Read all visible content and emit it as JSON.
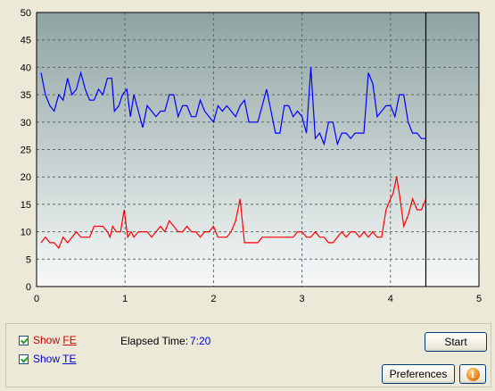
{
  "chart_data": {
    "type": "line",
    "title": "",
    "xlabel": "",
    "ylabel": "",
    "xlim": [
      0,
      5
    ],
    "ylim": [
      0,
      50
    ],
    "x_ticks": [
      "0",
      "1",
      "2",
      "3",
      "4",
      "5"
    ],
    "y_ticks": [
      "0",
      "5",
      "10",
      "15",
      "20",
      "25",
      "30",
      "35",
      "40",
      "45",
      "50"
    ],
    "grid": true,
    "cursor_x": 4.4,
    "series": [
      {
        "name": "TE",
        "color": "#0000ff",
        "points": [
          [
            0.05,
            39
          ],
          [
            0.1,
            35
          ],
          [
            0.15,
            33
          ],
          [
            0.2,
            32
          ],
          [
            0.25,
            35
          ],
          [
            0.3,
            34
          ],
          [
            0.35,
            38
          ],
          [
            0.4,
            35
          ],
          [
            0.45,
            36
          ],
          [
            0.5,
            39
          ],
          [
            0.55,
            36
          ],
          [
            0.6,
            34
          ],
          [
            0.65,
            34
          ],
          [
            0.7,
            36
          ],
          [
            0.75,
            35
          ],
          [
            0.8,
            38
          ],
          [
            0.85,
            38
          ],
          [
            0.88,
            32
          ],
          [
            0.93,
            33
          ],
          [
            0.97,
            35
          ],
          [
            1.02,
            36
          ],
          [
            1.06,
            31
          ],
          [
            1.1,
            35
          ],
          [
            1.15,
            32
          ],
          [
            1.2,
            29
          ],
          [
            1.25,
            33
          ],
          [
            1.3,
            32
          ],
          [
            1.35,
            31
          ],
          [
            1.4,
            32
          ],
          [
            1.45,
            32
          ],
          [
            1.5,
            35
          ],
          [
            1.55,
            35
          ],
          [
            1.6,
            31
          ],
          [
            1.65,
            33
          ],
          [
            1.7,
            33
          ],
          [
            1.75,
            31
          ],
          [
            1.8,
            31
          ],
          [
            1.85,
            34
          ],
          [
            1.9,
            32
          ],
          [
            1.95,
            31
          ],
          [
            2.0,
            30
          ],
          [
            2.05,
            33
          ],
          [
            2.1,
            32
          ],
          [
            2.15,
            33
          ],
          [
            2.2,
            32
          ],
          [
            2.25,
            31
          ],
          [
            2.3,
            33
          ],
          [
            2.35,
            34
          ],
          [
            2.4,
            30
          ],
          [
            2.45,
            30
          ],
          [
            2.5,
            30
          ],
          [
            2.55,
            33
          ],
          [
            2.6,
            36
          ],
          [
            2.65,
            32
          ],
          [
            2.7,
            28
          ],
          [
            2.75,
            28
          ],
          [
            2.8,
            33
          ],
          [
            2.85,
            33
          ],
          [
            2.9,
            31
          ],
          [
            2.95,
            32
          ],
          [
            3.0,
            31
          ],
          [
            3.05,
            28
          ],
          [
            3.1,
            40
          ],
          [
            3.15,
            27
          ],
          [
            3.2,
            28
          ],
          [
            3.25,
            26
          ],
          [
            3.3,
            30
          ],
          [
            3.35,
            30
          ],
          [
            3.4,
            26
          ],
          [
            3.45,
            28
          ],
          [
            3.5,
            28
          ],
          [
            3.55,
            27
          ],
          [
            3.6,
            28
          ],
          [
            3.65,
            28
          ],
          [
            3.7,
            28
          ],
          [
            3.75,
            39
          ],
          [
            3.8,
            37
          ],
          [
            3.85,
            31
          ],
          [
            3.9,
            32
          ],
          [
            3.95,
            33
          ],
          [
            4.0,
            33
          ],
          [
            4.05,
            31
          ],
          [
            4.1,
            35
          ],
          [
            4.15,
            35
          ],
          [
            4.2,
            30
          ],
          [
            4.25,
            28
          ],
          [
            4.3,
            28
          ],
          [
            4.35,
            27
          ],
          [
            4.4,
            27
          ]
        ]
      },
      {
        "name": "FE",
        "color": "#ff0000",
        "points": [
          [
            0.05,
            8
          ],
          [
            0.1,
            9
          ],
          [
            0.15,
            8
          ],
          [
            0.2,
            8
          ],
          [
            0.25,
            7
          ],
          [
            0.3,
            9
          ],
          [
            0.35,
            8
          ],
          [
            0.4,
            9
          ],
          [
            0.45,
            10
          ],
          [
            0.5,
            9
          ],
          [
            0.55,
            9
          ],
          [
            0.6,
            9
          ],
          [
            0.65,
            11
          ],
          [
            0.7,
            11
          ],
          [
            0.75,
            11
          ],
          [
            0.8,
            10
          ],
          [
            0.83,
            9
          ],
          [
            0.86,
            11
          ],
          [
            0.9,
            10
          ],
          [
            0.95,
            10
          ],
          [
            0.99,
            14
          ],
          [
            1.03,
            9
          ],
          [
            1.07,
            10
          ],
          [
            1.1,
            9
          ],
          [
            1.15,
            10
          ],
          [
            1.2,
            10
          ],
          [
            1.25,
            10
          ],
          [
            1.3,
            9
          ],
          [
            1.35,
            10
          ],
          [
            1.4,
            11
          ],
          [
            1.45,
            10
          ],
          [
            1.5,
            12
          ],
          [
            1.55,
            11
          ],
          [
            1.6,
            10
          ],
          [
            1.65,
            10
          ],
          [
            1.7,
            11
          ],
          [
            1.75,
            10
          ],
          [
            1.8,
            10
          ],
          [
            1.85,
            9
          ],
          [
            1.9,
            10
          ],
          [
            1.95,
            10
          ],
          [
            2.0,
            11
          ],
          [
            2.05,
            9
          ],
          [
            2.1,
            9
          ],
          [
            2.15,
            9
          ],
          [
            2.2,
            10
          ],
          [
            2.25,
            12
          ],
          [
            2.3,
            16
          ],
          [
            2.35,
            8
          ],
          [
            2.4,
            8
          ],
          [
            2.45,
            8
          ],
          [
            2.5,
            8
          ],
          [
            2.55,
            9
          ],
          [
            2.6,
            9
          ],
          [
            2.65,
            9
          ],
          [
            2.7,
            9
          ],
          [
            2.75,
            9
          ],
          [
            2.8,
            9
          ],
          [
            2.85,
            9
          ],
          [
            2.9,
            9
          ],
          [
            2.95,
            10
          ],
          [
            3.0,
            10
          ],
          [
            3.05,
            9
          ],
          [
            3.1,
            9
          ],
          [
            3.15,
            10
          ],
          [
            3.2,
            9
          ],
          [
            3.25,
            9
          ],
          [
            3.3,
            8
          ],
          [
            3.35,
            8
          ],
          [
            3.4,
            9
          ],
          [
            3.45,
            10
          ],
          [
            3.5,
            9
          ],
          [
            3.55,
            10
          ],
          [
            3.6,
            10
          ],
          [
            3.65,
            9
          ],
          [
            3.7,
            10
          ],
          [
            3.75,
            9
          ],
          [
            3.8,
            10
          ],
          [
            3.85,
            9
          ],
          [
            3.9,
            9
          ],
          [
            3.95,
            14
          ],
          [
            4.0,
            16
          ],
          [
            4.03,
            17
          ],
          [
            4.07,
            20
          ],
          [
            4.1,
            17
          ],
          [
            4.15,
            11
          ],
          [
            4.2,
            13
          ],
          [
            4.25,
            16
          ],
          [
            4.3,
            14
          ],
          [
            4.35,
            14
          ],
          [
            4.4,
            16
          ]
        ]
      }
    ]
  },
  "colors": {
    "plot_top": "#8fa3a3",
    "plot_bottom": "#f7f9f9",
    "grid": "#5a6a6a"
  },
  "controls": {
    "show_fe_prefix": "Show ",
    "show_fe_key": "FE",
    "show_te_prefix": "Show ",
    "show_te_key": "TE",
    "elapsed_label": "Elapsed Time:",
    "elapsed_value": "7:20",
    "start_label": "Start",
    "preferences_label": "Preferences",
    "info_glyph": "i"
  }
}
